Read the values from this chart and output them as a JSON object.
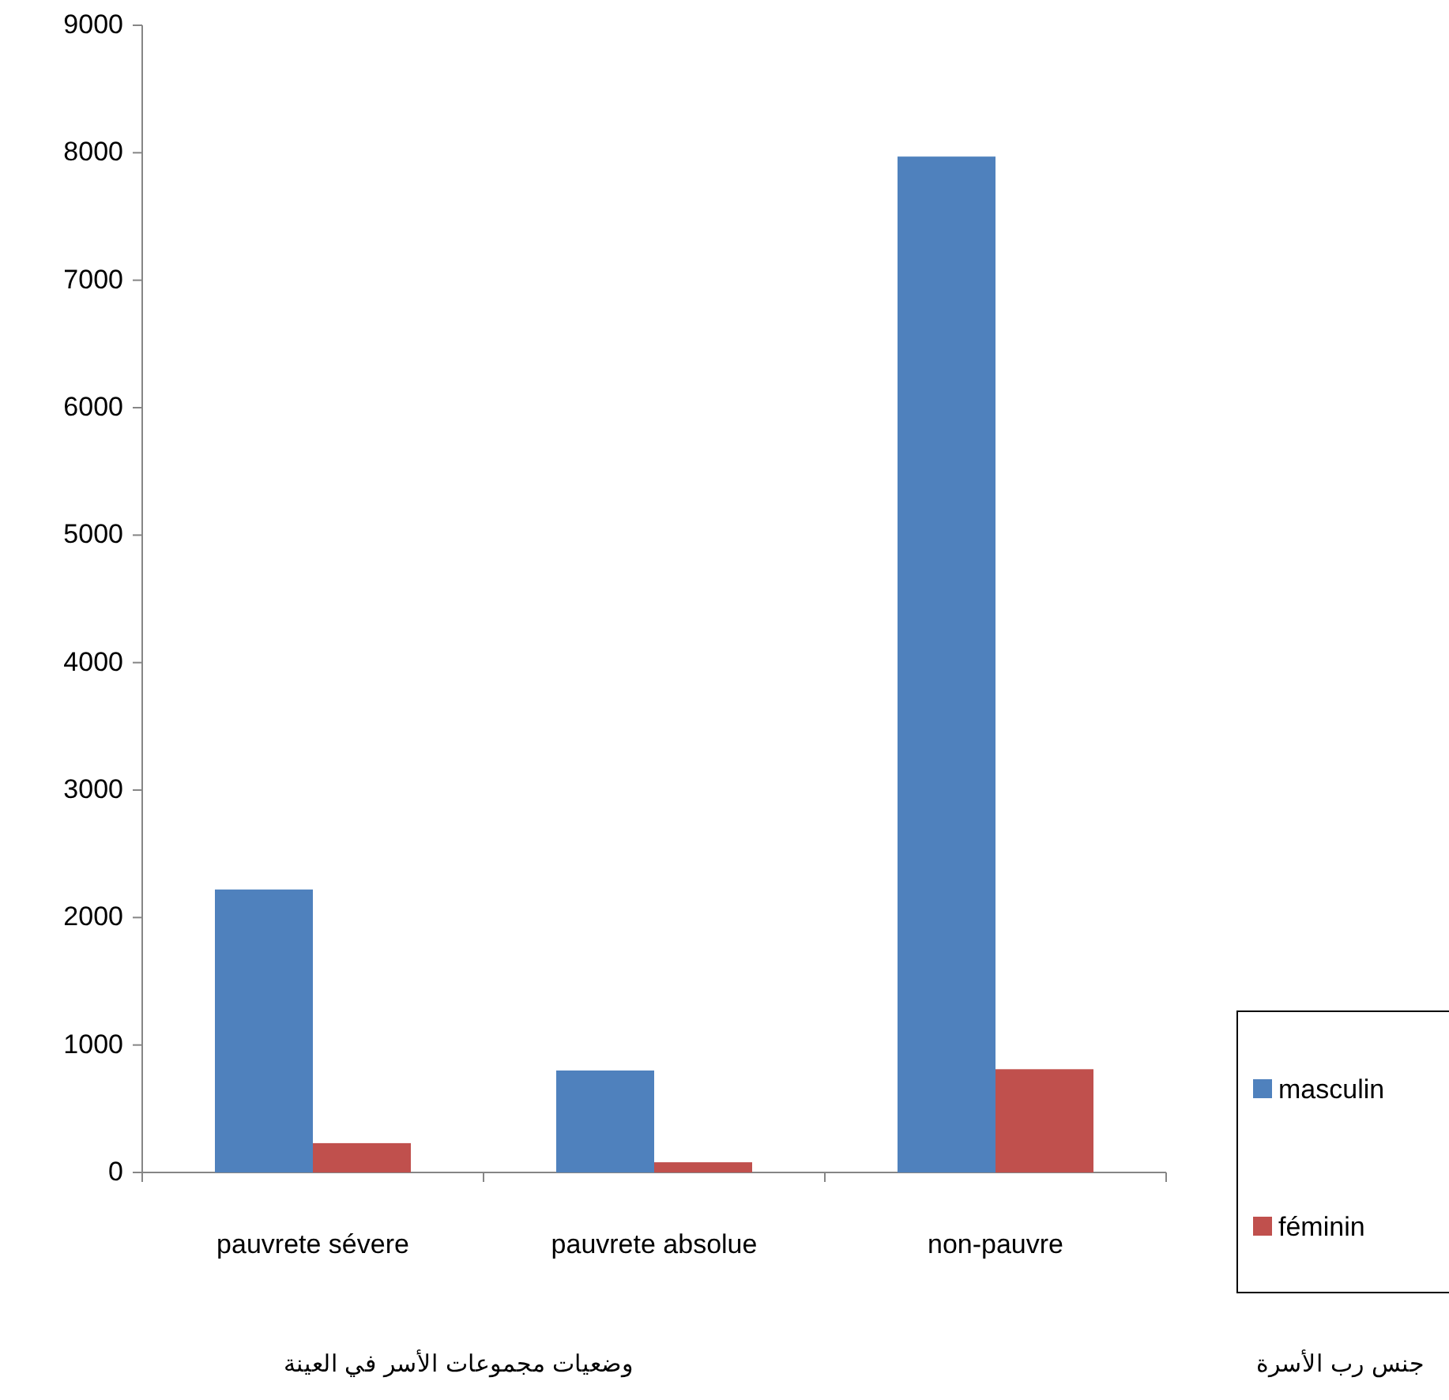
{
  "chart_data": {
    "type": "bar",
    "categories": [
      "pauvrete sévere",
      "pauvrete absolue",
      "non-pauvre"
    ],
    "series": [
      {
        "name": "masculin",
        "color": "#4f81bd",
        "values": [
          2220,
          800,
          7970
        ]
      },
      {
        "name": "féminin",
        "color": "#c0504d",
        "values": [
          230,
          80,
          810
        ]
      }
    ],
    "xlabel": "وضعيات مجموعات الأسر في العينة",
    "legend_title": "جنس رب الأسرة",
    "ylim": [
      0,
      9000
    ],
    "yticks": [
      0,
      1000,
      2000,
      3000,
      4000,
      5000,
      6000,
      7000,
      8000,
      9000
    ],
    "grid": false,
    "legend": "right"
  }
}
